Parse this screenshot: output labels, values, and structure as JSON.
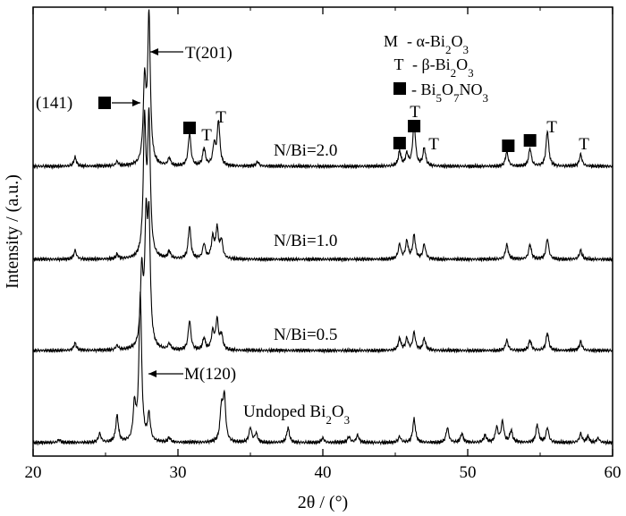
{
  "chart_data": {
    "type": "line",
    "xlabel": "2θ / (°)",
    "ylabel": "Intensity / (a.u.)",
    "xlim": [
      20,
      60
    ],
    "xticks": [
      20,
      30,
      40,
      50,
      60
    ],
    "yticks_shown": false,
    "grid": false,
    "legend_position": "top-right",
    "legend": [
      {
        "marker": "M",
        "text": "- α-Bi2O3",
        "pre": "- α-Bi",
        "sub1": "2",
        "mid": "O",
        "sub2": "3",
        "post": ""
      },
      {
        "marker": "T",
        "text": "- β-Bi2O3",
        "pre": "- β-Bi",
        "sub1": "2",
        "mid": "O",
        "sub2": "3",
        "post": ""
      },
      {
        "marker": "square",
        "text": "- Bi5O7NO3",
        "pre": "- Bi",
        "sub1": "5",
        "mid": "O",
        "sub2": "7",
        "post": "NO",
        "sub3": "3"
      }
    ],
    "series": [
      {
        "name": "N/Bi=2.0",
        "peaks": [
          [
            22.9,
            0.06
          ],
          [
            25.8,
            0.03
          ],
          [
            27.7,
            0.55
          ],
          [
            28.0,
            1.0
          ],
          [
            29.4,
            0.05
          ],
          [
            30.8,
            0.22
          ],
          [
            31.8,
            0.12
          ],
          [
            32.5,
            0.14
          ],
          [
            32.8,
            0.3
          ],
          [
            35.5,
            0.03
          ],
          [
            45.3,
            0.1
          ],
          [
            45.8,
            0.08
          ],
          [
            46.3,
            0.3
          ],
          [
            47.0,
            0.12
          ],
          [
            52.7,
            0.1
          ],
          [
            54.3,
            0.12
          ],
          [
            55.5,
            0.24
          ],
          [
            57.8,
            0.08
          ]
        ]
      },
      {
        "name": "N/Bi=1.0",
        "peaks": [
          [
            22.9,
            0.06
          ],
          [
            25.8,
            0.03
          ],
          [
            27.7,
            0.9
          ],
          [
            28.0,
            0.92
          ],
          [
            29.4,
            0.05
          ],
          [
            30.8,
            0.22
          ],
          [
            31.8,
            0.1
          ],
          [
            32.4,
            0.14
          ],
          [
            32.7,
            0.2
          ],
          [
            33.0,
            0.12
          ],
          [
            45.3,
            0.1
          ],
          [
            45.8,
            0.12
          ],
          [
            46.3,
            0.16
          ],
          [
            47.0,
            0.1
          ],
          [
            52.7,
            0.1
          ],
          [
            54.3,
            0.1
          ],
          [
            55.5,
            0.14
          ],
          [
            57.8,
            0.06
          ]
        ]
      },
      {
        "name": "N/Bi=0.5",
        "peaks": [
          [
            22.9,
            0.05
          ],
          [
            25.8,
            0.03
          ],
          [
            27.5,
            0.5
          ],
          [
            27.8,
            0.78
          ],
          [
            28.0,
            0.8
          ],
          [
            29.4,
            0.04
          ],
          [
            30.8,
            0.2
          ],
          [
            31.8,
            0.08
          ],
          [
            32.4,
            0.12
          ],
          [
            32.7,
            0.2
          ],
          [
            33.0,
            0.1
          ],
          [
            45.3,
            0.08
          ],
          [
            45.8,
            0.08
          ],
          [
            46.3,
            0.12
          ],
          [
            47.0,
            0.08
          ],
          [
            52.7,
            0.07
          ],
          [
            54.3,
            0.07
          ],
          [
            55.5,
            0.12
          ],
          [
            57.8,
            0.06
          ]
        ]
      },
      {
        "name": "Undoped Bi2O3",
        "peaks": [
          [
            21.8,
            0.02
          ],
          [
            24.6,
            0.06
          ],
          [
            25.8,
            0.18
          ],
          [
            27.0,
            0.24
          ],
          [
            27.4,
            1.0
          ],
          [
            28.0,
            0.18
          ],
          [
            29.4,
            0.03
          ],
          [
            33.0,
            0.22
          ],
          [
            33.2,
            0.3
          ],
          [
            35.0,
            0.1
          ],
          [
            35.4,
            0.06
          ],
          [
            37.6,
            0.1
          ],
          [
            40.0,
            0.03
          ],
          [
            41.8,
            0.04
          ],
          [
            42.4,
            0.05
          ],
          [
            45.3,
            0.04
          ],
          [
            46.3,
            0.16
          ],
          [
            48.6,
            0.1
          ],
          [
            49.6,
            0.06
          ],
          [
            51.2,
            0.05
          ],
          [
            52.0,
            0.1
          ],
          [
            52.4,
            0.14
          ],
          [
            53.0,
            0.08
          ],
          [
            54.8,
            0.12
          ],
          [
            55.5,
            0.1
          ],
          [
            57.8,
            0.06
          ],
          [
            58.3,
            0.04
          ],
          [
            59.0,
            0.03
          ]
        ]
      }
    ],
    "annotations": {
      "t201": "T(201)",
      "p141": "(141)",
      "m120": "M(120)",
      "t_letter": "T",
      "undoped_pre": "Undoped Bi",
      "undoped_sub1": "2",
      "undoped_mid": "O",
      "undoped_sub2": "3"
    },
    "markers_on_top_series": {
      "square_x": [
        25.0,
        30.8,
        45.3,
        46.3,
        52.8,
        54.3
      ],
      "T_x": [
        32.0,
        32.8,
        46.3,
        47.6,
        55.6,
        57.9
      ]
    }
  }
}
